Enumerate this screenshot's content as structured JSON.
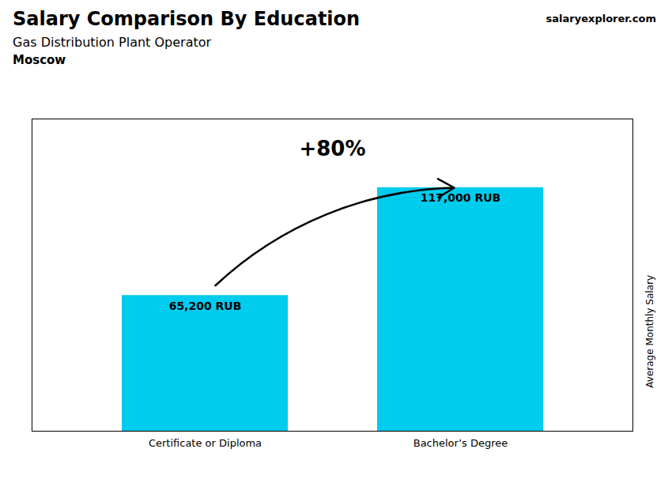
{
  "chart_data": {
    "type": "bar",
    "title": "Salary Comparison By Education",
    "subtitle": "Gas Distribution Plant Operator",
    "annotations": [
      "Moscow",
      "salaryexplorer.com",
      "+80%"
    ],
    "ylabel": "Average Monthly Salary",
    "categories": [
      "Certificate or Diploma",
      "Bachelor’s Degree"
    ],
    "values": [
      65200,
      117000
    ],
    "value_labels": [
      "65,200 RUB",
      "117,000 RUB"
    ],
    "data_labels": true,
    "color": "#00CCEE",
    "ylim": [
      0,
      150000
    ],
    "tick_labels": "x",
    "grid": false
  }
}
